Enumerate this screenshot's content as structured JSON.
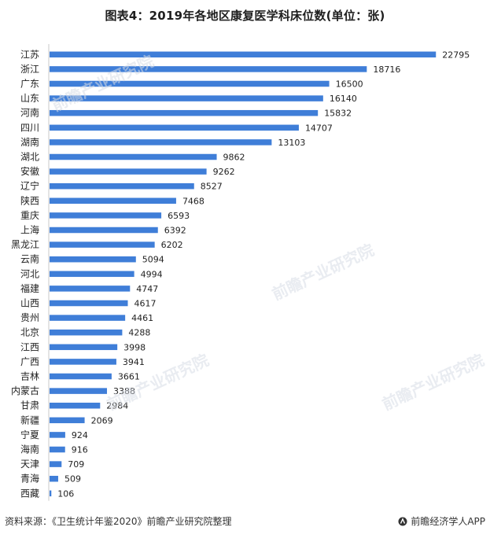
{
  "title": "图表4：2019年各地区康复医学科床位数(单位：张)",
  "watermark_text": "前瞻产业研究院",
  "footer": {
    "source": "资料来源：《卫生统计年鉴2020》前瞻产业研究院整理",
    "brand": "前瞻经济学人APP",
    "brand_icon": "qianzhan-logo-icon"
  },
  "colors": {
    "bar": "#3f7ed8",
    "axis": "#c8c8c8",
    "label_text": "#222222",
    "value_text": "#222222"
  },
  "chart_data": {
    "type": "bar",
    "orientation": "horizontal",
    "title": "图表4：2019年各地区康复医学科床位数(单位：张)",
    "xlabel": "",
    "ylabel": "",
    "grid": false,
    "legend": "none",
    "xlim": [
      0,
      24500
    ],
    "categories": [
      "江苏",
      "浙江",
      "广东",
      "山东",
      "河南",
      "四川",
      "湖南",
      "湖北",
      "安徽",
      "辽宁",
      "陕西",
      "重庆",
      "上海",
      "黑龙江",
      "云南",
      "河北",
      "福建",
      "山西",
      "贵州",
      "北京",
      "江西",
      "广西",
      "吉林",
      "内蒙古",
      "甘肃",
      "新疆",
      "宁夏",
      "海南",
      "天津",
      "青海",
      "西藏"
    ],
    "values": [
      22795,
      18716,
      16500,
      16140,
      15832,
      14707,
      13103,
      9862,
      9262,
      8527,
      7468,
      6593,
      6392,
      6202,
      5094,
      4994,
      4747,
      4617,
      4461,
      4288,
      3998,
      3941,
      3661,
      3388,
      2984,
      2069,
      924,
      916,
      709,
      509,
      106
    ]
  }
}
